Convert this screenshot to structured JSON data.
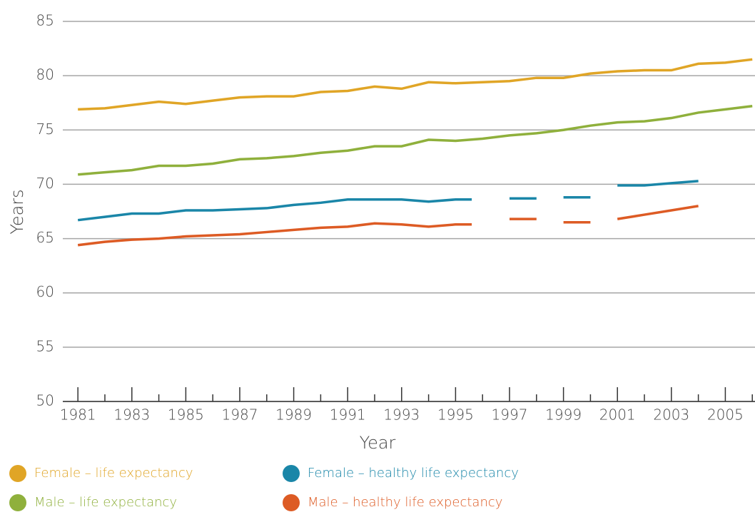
{
  "chart_data": {
    "type": "line",
    "xlabel": "Year",
    "ylabel": "Years",
    "xlim": [
      1980.44,
      2006.1
    ],
    "ylim": [
      50,
      85
    ],
    "xticks": [
      1981,
      1983,
      1985,
      1987,
      1989,
      1991,
      1993,
      1995,
      1997,
      1999,
      2001,
      2003,
      2005
    ],
    "minor_xticks": [
      1982,
      1984,
      1986,
      1988,
      1990,
      1992,
      1994,
      1996,
      1998,
      2000,
      2002,
      2004,
      2006
    ],
    "yticks": [
      50,
      55,
      60,
      65,
      70,
      75,
      80,
      85
    ],
    "grid": true,
    "series": [
      {
        "name": "Female – life expectancy",
        "color": "#e0a526",
        "x": [
          1981,
          1982,
          1983,
          1984,
          1985,
          1986,
          1987,
          1988,
          1989,
          1990,
          1991,
          1992,
          1993,
          1994,
          1995,
          1996,
          1997,
          1998,
          1999,
          2000,
          2001,
          2002,
          2003,
          2004,
          2005,
          2006
        ],
        "values": [
          76.9,
          77.0,
          77.3,
          77.6,
          77.4,
          77.7,
          78.0,
          78.1,
          78.1,
          78.5,
          78.6,
          79.0,
          78.8,
          79.4,
          79.3,
          79.4,
          79.5,
          79.8,
          79.8,
          80.2,
          80.4,
          80.5,
          80.5,
          81.1,
          81.2,
          81.5
        ]
      },
      {
        "name": "Male – life expectancy",
        "color": "#8fb03c",
        "x": [
          1981,
          1982,
          1983,
          1984,
          1985,
          1986,
          1987,
          1988,
          1989,
          1990,
          1991,
          1992,
          1993,
          1994,
          1995,
          1996,
          1997,
          1998,
          1999,
          2000,
          2001,
          2002,
          2003,
          2004,
          2005,
          2006
        ],
        "values": [
          70.9,
          71.1,
          71.3,
          71.7,
          71.7,
          71.9,
          72.3,
          72.4,
          72.6,
          72.9,
          73.1,
          73.5,
          73.5,
          74.1,
          74.0,
          74.2,
          74.5,
          74.7,
          75.0,
          75.4,
          75.7,
          75.8,
          76.1,
          76.6,
          76.9,
          77.2
        ]
      },
      {
        "name": "Female – healthy life expectancy",
        "color": "#1a86a8",
        "x": [
          1981,
          1982,
          1983,
          1984,
          1985,
          1986,
          1987,
          1988,
          1989,
          1990,
          1991,
          1992,
          1993,
          1994,
          1995,
          1995.6,
          null,
          1997,
          1998,
          null,
          1999,
          2000,
          null,
          2001,
          2002,
          2003,
          2004
        ],
        "values": [
          66.7,
          67.0,
          67.3,
          67.3,
          67.6,
          67.6,
          67.7,
          67.8,
          68.1,
          68.3,
          68.6,
          68.6,
          68.6,
          68.4,
          68.6,
          68.6,
          null,
          68.7,
          68.7,
          null,
          68.8,
          68.8,
          null,
          69.9,
          69.9,
          70.1,
          70.3
        ]
      },
      {
        "name": "Male – healthy life expectancy",
        "color": "#dd5b24",
        "x": [
          1981,
          1982,
          1983,
          1984,
          1985,
          1986,
          1987,
          1988,
          1989,
          1990,
          1991,
          1992,
          1993,
          1994,
          1995,
          1995.6,
          null,
          1997,
          1998,
          null,
          1999,
          2000,
          null,
          2001,
          2002,
          2003,
          2004
        ],
        "values": [
          64.4,
          64.7,
          64.9,
          65.0,
          65.2,
          65.3,
          65.4,
          65.6,
          65.8,
          66.0,
          66.1,
          66.4,
          66.3,
          66.1,
          66.3,
          66.3,
          null,
          66.8,
          66.8,
          null,
          66.5,
          66.5,
          null,
          66.8,
          67.2,
          67.6,
          68.0
        ]
      }
    ]
  }
}
